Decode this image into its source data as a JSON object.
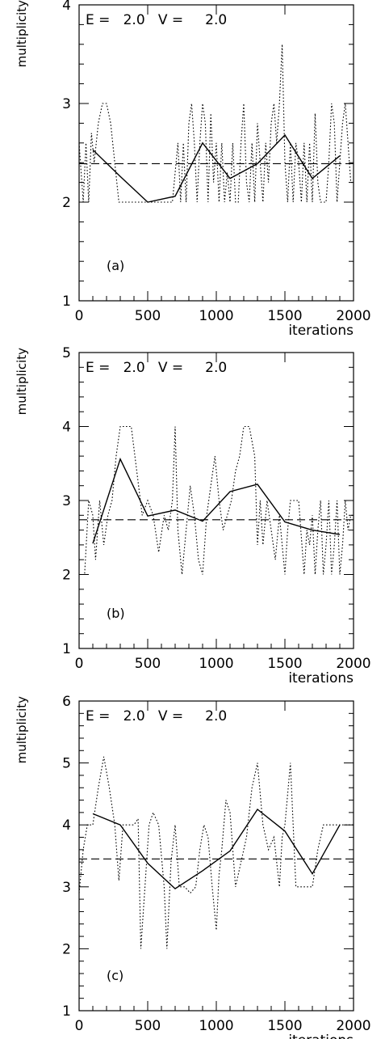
{
  "chart_data": [
    {
      "type": "line",
      "annotation": "E =   2.0   V =     2.0",
      "panel_label": "(a)",
      "ylabel": "multiplicity",
      "xlabel": "iterations",
      "xlim": [
        0,
        2000
      ],
      "ylim": [
        1,
        4
      ],
      "xticks": [
        0,
        500,
        1000,
        1500,
        2000
      ],
      "yticks": [
        1,
        2,
        3,
        4
      ],
      "series": [
        {
          "style": "dashed",
          "x": [
            0,
            2000
          ],
          "y": [
            2.39,
            2.39
          ]
        },
        {
          "style": "solid",
          "x": [
            100,
            300,
            500,
            700,
            900,
            1100,
            1300,
            1500,
            1700,
            1900
          ],
          "y": [
            2.53,
            2.26,
            2.0,
            2.06,
            2.6,
            2.24,
            2.39,
            2.68,
            2.24,
            2.47
          ]
        },
        {
          "style": "dotted",
          "x": [
            0,
            30,
            50,
            70,
            90,
            110,
            140,
            170,
            200,
            230,
            260,
            290,
            320,
            360,
            400,
            440,
            480,
            520,
            560,
            600,
            640,
            680,
            720,
            740,
            760,
            780,
            800,
            820,
            840,
            860,
            880,
            900,
            920,
            940,
            960,
            980,
            1000,
            1020,
            1040,
            1060,
            1080,
            1100,
            1120,
            1140,
            1160,
            1180,
            1200,
            1220,
            1240,
            1260,
            1280,
            1300,
            1320,
            1340,
            1360,
            1380,
            1400,
            1420,
            1440,
            1460,
            1480,
            1500,
            1520,
            1540,
            1560,
            1580,
            1600,
            1620,
            1640,
            1660,
            1680,
            1700,
            1720,
            1740,
            1760,
            1780,
            1800,
            1820,
            1840,
            1860,
            1880,
            1900,
            1920,
            1940,
            1960,
            1980,
            2000
          ],
          "y": [
            2.6,
            2.0,
            2.6,
            2.0,
            2.7,
            2.4,
            2.8,
            3.0,
            3.0,
            2.8,
            2.4,
            2.0,
            2.0,
            2.0,
            2.0,
            2.0,
            2.0,
            2.0,
            2.0,
            2.0,
            2.0,
            2.0,
            2.6,
            2.0,
            2.6,
            2.0,
            2.8,
            3.0,
            2.6,
            2.0,
            2.6,
            3.0,
            2.8,
            2.0,
            2.9,
            2.2,
            2.6,
            2.0,
            2.6,
            2.0,
            2.3,
            2.0,
            2.6,
            2.0,
            2.0,
            2.6,
            3.0,
            2.2,
            2.0,
            2.6,
            2.0,
            2.8,
            2.4,
            2.0,
            2.6,
            2.2,
            2.8,
            3.0,
            2.6,
            3.0,
            3.6,
            2.4,
            2.0,
            2.6,
            2.0,
            2.6,
            2.4,
            2.0,
            2.6,
            2.0,
            2.6,
            2.0,
            2.9,
            2.2,
            2.0,
            2.0,
            2.0,
            2.4,
            3.0,
            2.8,
            2.0,
            2.4,
            2.8,
            3.0,
            2.6,
            2.2,
            2.2
          ]
        }
      ]
    },
    {
      "type": "line",
      "annotation": "E =   2.0   V =     2.0",
      "panel_label": "(b)",
      "ylabel": "multiplicity",
      "xlabel": "iterations",
      "xlim": [
        0,
        2000
      ],
      "ylim": [
        1,
        5
      ],
      "xticks": [
        0,
        500,
        1000,
        1500,
        2000
      ],
      "yticks": [
        1,
        2,
        3,
        4,
        5
      ],
      "series": [
        {
          "style": "dashed",
          "x": [
            0,
            2000
          ],
          "y": [
            2.74,
            2.74
          ]
        },
        {
          "style": "solid",
          "x": [
            100,
            300,
            500,
            700,
            900,
            1100,
            1300,
            1500,
            1700,
            1900
          ],
          "y": [
            2.42,
            3.56,
            2.79,
            2.87,
            2.72,
            3.12,
            3.22,
            2.71,
            2.6,
            2.54
          ]
        },
        {
          "style": "dotted",
          "x": [
            0,
            40,
            70,
            100,
            120,
            150,
            180,
            210,
            240,
            270,
            300,
            340,
            380,
            420,
            460,
            500,
            540,
            580,
            620,
            650,
            680,
            700,
            720,
            750,
            780,
            810,
            840,
            870,
            900,
            930,
            960,
            990,
            1020,
            1050,
            1080,
            1110,
            1140,
            1170,
            1200,
            1240,
            1280,
            1300,
            1320,
            1340,
            1370,
            1400,
            1430,
            1460,
            1500,
            1520,
            1540,
            1560,
            1600,
            1640,
            1660,
            1680,
            1700,
            1720,
            1740,
            1760,
            1780,
            1800,
            1820,
            1840,
            1860,
            1880,
            1900,
            1920,
            1940,
            1960,
            1980,
            2000
          ],
          "y": [
            2.0,
            2.0,
            3.0,
            2.8,
            2.2,
            3.0,
            2.4,
            2.8,
            3.0,
            3.6,
            4.0,
            4.0,
            4.0,
            3.4,
            2.8,
            3.0,
            2.8,
            2.3,
            2.8,
            2.6,
            3.0,
            4.0,
            2.6,
            2.0,
            2.6,
            3.2,
            2.8,
            2.2,
            2.0,
            2.8,
            3.2,
            3.6,
            3.0,
            2.6,
            2.8,
            3.0,
            3.4,
            3.6,
            4.0,
            4.0,
            3.6,
            2.4,
            3.0,
            2.4,
            3.0,
            2.6,
            2.2,
            2.8,
            2.0,
            2.6,
            3.0,
            3.0,
            3.0,
            2.0,
            2.6,
            2.4,
            2.8,
            2.0,
            2.6,
            3.0,
            2.0,
            2.4,
            3.0,
            2.0,
            2.4,
            3.0,
            2.0,
            2.4,
            3.0,
            2.6,
            2.8,
            2.8
          ]
        }
      ]
    },
    {
      "type": "line",
      "annotation": "E =   2.0   V =     2.0",
      "panel_label": "(c)",
      "ylabel": "multiplicity",
      "xlabel": "iterations",
      "xlim": [
        0,
        2000
      ],
      "ylim": [
        1,
        6
      ],
      "xticks": [
        0,
        500,
        1000,
        1500,
        2000
      ],
      "yticks": [
        1,
        2,
        3,
        4,
        5,
        6
      ],
      "series": [
        {
          "style": "dashed",
          "x": [
            0,
            2000
          ],
          "y": [
            3.45,
            3.45
          ]
        },
        {
          "style": "solid",
          "x": [
            100,
            300,
            500,
            700,
            900,
            1100,
            1300,
            1500,
            1700,
            1900
          ],
          "y": [
            4.18,
            4.0,
            3.38,
            2.97,
            3.26,
            3.58,
            4.25,
            3.9,
            3.21,
            4.0
          ]
        },
        {
          "style": "dotted",
          "x": [
            0,
            30,
            60,
            100,
            140,
            180,
            220,
            260,
            290,
            320,
            360,
            400,
            430,
            450,
            480,
            510,
            540,
            580,
            620,
            640,
            670,
            700,
            730,
            770,
            810,
            850,
            880,
            910,
            940,
            970,
            1000,
            1020,
            1040,
            1070,
            1100,
            1140,
            1180,
            1220,
            1260,
            1300,
            1340,
            1380,
            1420,
            1460,
            1480,
            1500,
            1540,
            1580,
            1620,
            1660,
            1700,
            1740,
            1780,
            1820,
            1860,
            1900,
            1940,
            1980,
            2000
          ],
          "y": [
            2.9,
            3.6,
            4.0,
            4.0,
            4.6,
            5.1,
            4.6,
            4.0,
            3.1,
            4.0,
            4.0,
            4.0,
            4.1,
            2.0,
            3.0,
            4.0,
            4.2,
            4.0,
            3.0,
            2.0,
            3.4,
            4.0,
            3.0,
            3.0,
            2.9,
            3.0,
            3.6,
            4.0,
            3.8,
            3.0,
            2.3,
            3.2,
            3.6,
            4.4,
            4.2,
            3.0,
            3.4,
            3.8,
            4.6,
            5.0,
            4.0,
            3.6,
            3.8,
            3.0,
            3.8,
            4.0,
            5.0,
            3.0,
            3.0,
            3.0,
            3.0,
            3.6,
            4.0,
            4.0,
            4.0,
            4.0,
            4.0,
            4.0,
            4.0
          ]
        }
      ]
    }
  ]
}
